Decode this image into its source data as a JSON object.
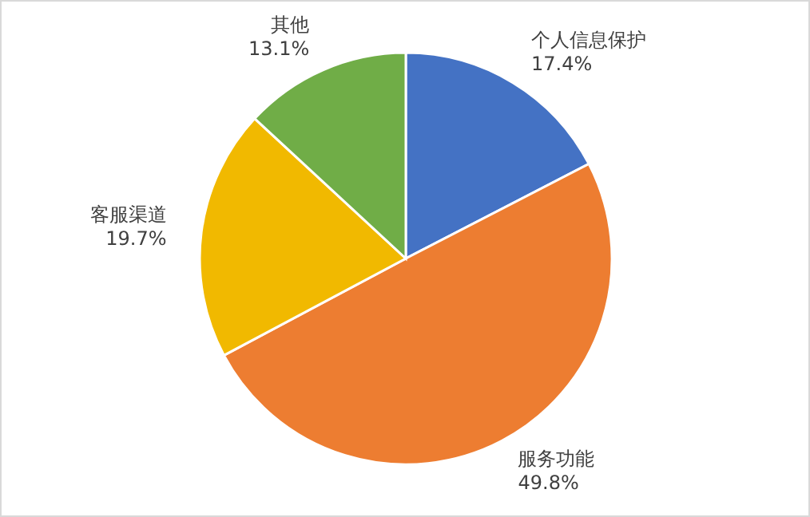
{
  "chart_data": {
    "type": "pie",
    "categories": [
      "个人信息保护",
      "服务功能",
      "客服渠道",
      "其他"
    ],
    "values": [
      17.4,
      49.8,
      19.7,
      13.1
    ],
    "value_labels": [
      "17.4%",
      "49.8%",
      "19.7%",
      "13.1%"
    ],
    "colors": [
      "#4472c4",
      "#ed7d31",
      "#f1b900",
      "#70ad47"
    ]
  }
}
